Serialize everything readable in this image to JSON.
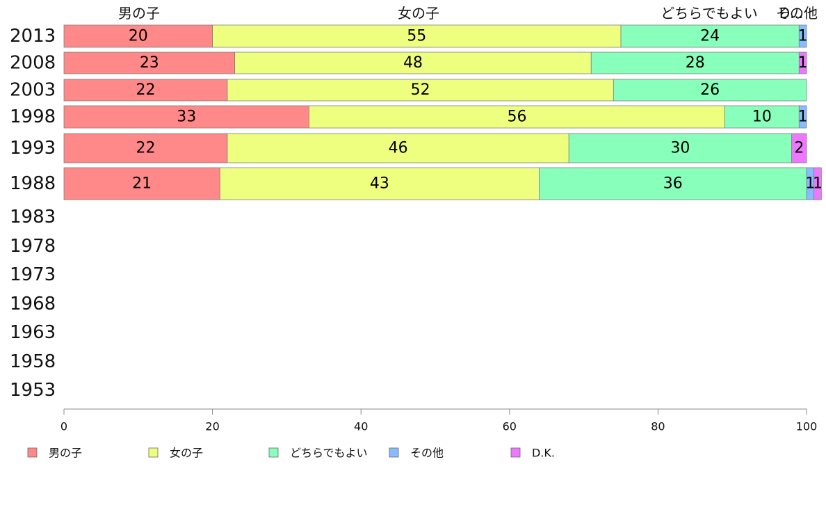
{
  "chart_data": {
    "type": "bar",
    "orientation": "horizontal",
    "stacked": true,
    "categories": [
      "2013",
      "2008",
      "2003",
      "1998",
      "1993",
      "1988",
      "1983",
      "1978",
      "1973",
      "1968",
      "1963",
      "1958",
      "1953"
    ],
    "series": [
      {
        "name": "男の子",
        "color": "#ff8888",
        "values": [
          20,
          23,
          22,
          33,
          22,
          21,
          null,
          null,
          null,
          null,
          null,
          null,
          null
        ]
      },
      {
        "name": "女の子",
        "color": "#eeff80",
        "values": [
          55,
          48,
          52,
          56,
          46,
          43,
          null,
          null,
          null,
          null,
          null,
          null,
          null
        ]
      },
      {
        "name": "どちらでもよい",
        "color": "#88ffbb",
        "values": [
          24,
          28,
          26,
          10,
          30,
          36,
          null,
          null,
          null,
          null,
          null,
          null,
          null
        ]
      },
      {
        "name": "その他",
        "color": "#88bbff",
        "values": [
          1,
          0,
          0,
          1,
          0,
          1,
          null,
          null,
          null,
          null,
          null,
          null,
          null
        ]
      },
      {
        "name": "D.K.",
        "color": "#ee77ff",
        "values": [
          0,
          1,
          0,
          0,
          2,
          1,
          null,
          null,
          null,
          null,
          null,
          null,
          null
        ]
      }
    ],
    "column_labels": [
      "男の子",
      "女の子",
      "どちらでもよい",
      "その他",
      "D..."
    ],
    "xlim": [
      0,
      100
    ],
    "xticks": [
      "0",
      "20",
      "40",
      "60",
      "80",
      "100"
    ],
    "grid": false,
    "legend_position": "bottom"
  }
}
